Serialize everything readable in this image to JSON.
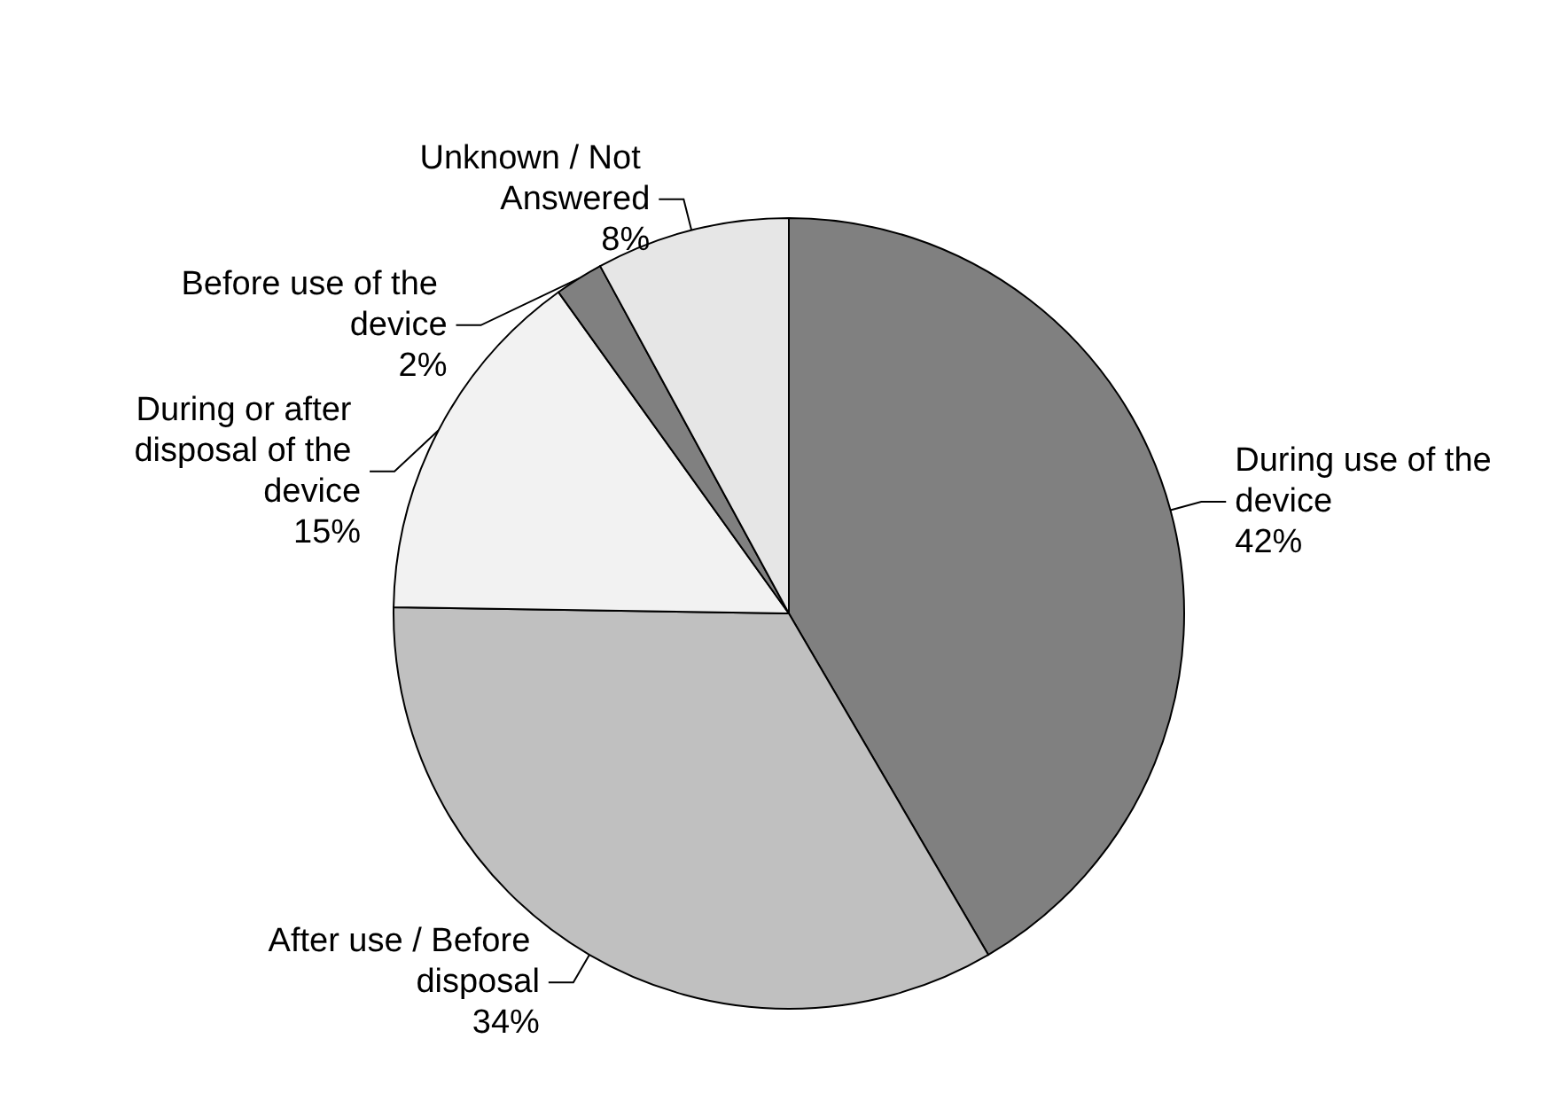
{
  "chart_data": {
    "type": "pie",
    "categories": [
      "During use of the device",
      "After use / Before disposal",
      "During or after disposal of the device",
      "Before use of the device",
      "Unknown / Not Answered"
    ],
    "values": [
      42,
      34,
      15,
      2,
      8
    ],
    "value_labels": [
      "42%",
      "34%",
      "15%",
      "2%",
      "8%"
    ],
    "colors": [
      "#808080",
      "#c0c0c0",
      "#f2f2f2",
      "#808080",
      "#e6e6e6"
    ],
    "legend": false
  }
}
